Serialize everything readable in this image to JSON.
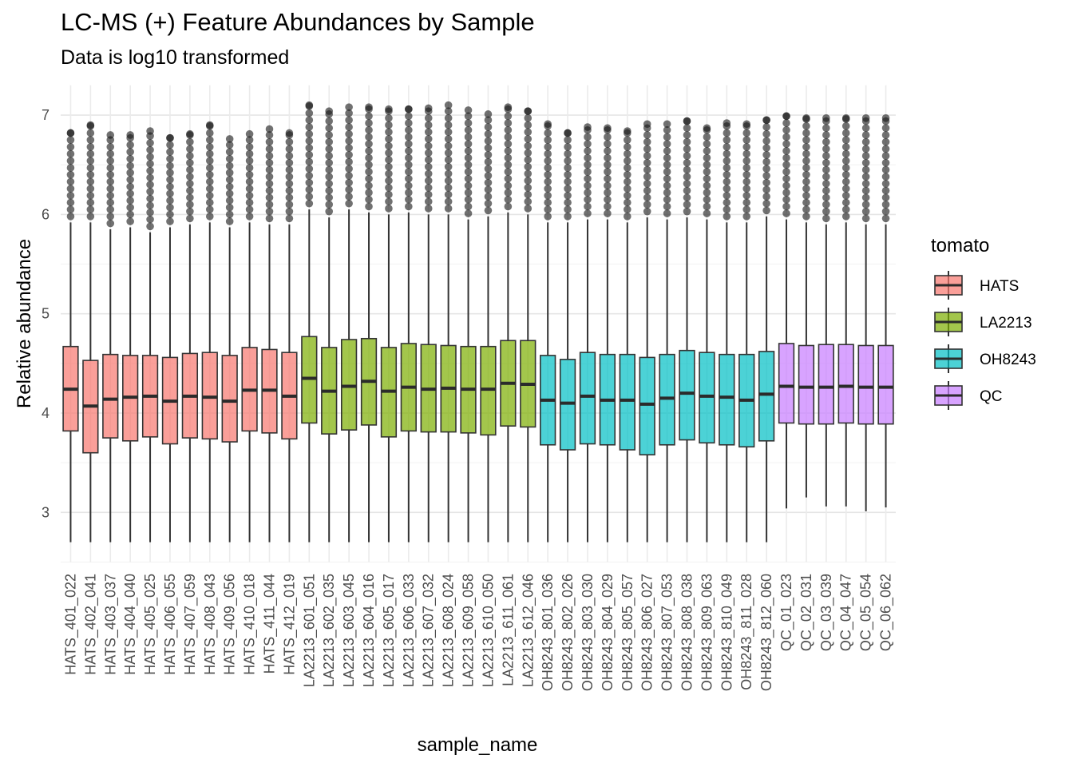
{
  "chart_data": {
    "type": "box",
    "title": "LC-MS (+) Feature Abundances by Sample",
    "subtitle": "Data is log10 transformed",
    "xlabel": "sample_name",
    "ylabel": "Relative abundance",
    "ylim": [
      2.5,
      7.3
    ],
    "yticks": [
      3,
      4,
      5,
      6,
      7
    ],
    "grid": true,
    "legend": {
      "title": "tomato",
      "position": "right",
      "entries": [
        {
          "label": "HATS",
          "color": "#F8766D"
        },
        {
          "label": "LA2213",
          "color": "#7CAE00"
        },
        {
          "label": "OH8243",
          "color": "#00BFC4"
        },
        {
          "label": "QC",
          "color": "#C77CFF"
        }
      ]
    },
    "boxes": [
      {
        "sample": "HATS_401_022",
        "group": "HATS",
        "whisker_low": 2.7,
        "q1": 3.82,
        "median": 4.24,
        "q3": 4.67,
        "whisker_high": 5.92,
        "outlier_max": 6.82
      },
      {
        "sample": "HATS_402_041",
        "group": "HATS",
        "whisker_low": 2.7,
        "q1": 3.6,
        "median": 4.07,
        "q3": 4.53,
        "whisker_high": 5.92,
        "outlier_max": 6.9
      },
      {
        "sample": "HATS_403_037",
        "group": "HATS",
        "whisker_low": 2.7,
        "q1": 3.75,
        "median": 4.14,
        "q3": 4.59,
        "whisker_high": 5.85,
        "outlier_max": 6.8
      },
      {
        "sample": "HATS_404_040",
        "group": "HATS",
        "whisker_low": 2.7,
        "q1": 3.72,
        "median": 4.16,
        "q3": 4.58,
        "whisker_high": 5.87,
        "outlier_max": 6.8
      },
      {
        "sample": "HATS_405_025",
        "group": "HATS",
        "whisker_low": 2.7,
        "q1": 3.76,
        "median": 4.17,
        "q3": 4.58,
        "whisker_high": 5.82,
        "outlier_max": 6.84
      },
      {
        "sample": "HATS_406_055",
        "group": "HATS",
        "whisker_low": 2.7,
        "q1": 3.69,
        "median": 4.12,
        "q3": 4.56,
        "whisker_high": 5.87,
        "outlier_max": 6.77
      },
      {
        "sample": "HATS_407_059",
        "group": "HATS",
        "whisker_low": 2.7,
        "q1": 3.75,
        "median": 4.17,
        "q3": 4.6,
        "whisker_high": 5.9,
        "outlier_max": 6.81
      },
      {
        "sample": "HATS_408_043",
        "group": "HATS",
        "whisker_low": 2.7,
        "q1": 3.74,
        "median": 4.16,
        "q3": 4.61,
        "whisker_high": 5.92,
        "outlier_max": 6.9
      },
      {
        "sample": "HATS_409_056",
        "group": "HATS",
        "whisker_low": 2.7,
        "q1": 3.71,
        "median": 4.12,
        "q3": 4.58,
        "whisker_high": 5.87,
        "outlier_max": 6.76
      },
      {
        "sample": "HATS_410_018",
        "group": "HATS",
        "whisker_low": 2.7,
        "q1": 3.82,
        "median": 4.23,
        "q3": 4.66,
        "whisker_high": 5.92,
        "outlier_max": 6.81
      },
      {
        "sample": "HATS_411_044",
        "group": "HATS",
        "whisker_low": 2.7,
        "q1": 3.8,
        "median": 4.23,
        "q3": 4.64,
        "whisker_high": 5.9,
        "outlier_max": 6.86
      },
      {
        "sample": "HATS_412_019",
        "group": "HATS",
        "whisker_low": 2.7,
        "q1": 3.74,
        "median": 4.17,
        "q3": 4.61,
        "whisker_high": 5.9,
        "outlier_max": 6.82
      },
      {
        "sample": "LA2213_601_051",
        "group": "LA2213",
        "whisker_low": 2.7,
        "q1": 3.9,
        "median": 4.35,
        "q3": 4.77,
        "whisker_high": 6.05,
        "outlier_max": 7.1
      },
      {
        "sample": "LA2213_602_035",
        "group": "LA2213",
        "whisker_low": 2.7,
        "q1": 3.79,
        "median": 4.22,
        "q3": 4.66,
        "whisker_high": 5.97,
        "outlier_max": 7.04
      },
      {
        "sample": "LA2213_603_045",
        "group": "LA2213",
        "whisker_low": 2.7,
        "q1": 3.83,
        "median": 4.27,
        "q3": 4.74,
        "whisker_high": 6.05,
        "outlier_max": 7.08
      },
      {
        "sample": "LA2213_604_016",
        "group": "LA2213",
        "whisker_low": 2.7,
        "q1": 3.88,
        "median": 4.32,
        "q3": 4.75,
        "whisker_high": 6.02,
        "outlier_max": 7.08
      },
      {
        "sample": "LA2213_605_017",
        "group": "LA2213",
        "whisker_low": 2.7,
        "q1": 3.76,
        "median": 4.22,
        "q3": 4.66,
        "whisker_high": 6.0,
        "outlier_max": 7.06
      },
      {
        "sample": "LA2213_606_033",
        "group": "LA2213",
        "whisker_low": 2.7,
        "q1": 3.82,
        "median": 4.26,
        "q3": 4.7,
        "whisker_high": 6.02,
        "outlier_max": 7.06
      },
      {
        "sample": "LA2213_607_032",
        "group": "LA2213",
        "whisker_low": 2.7,
        "q1": 3.81,
        "median": 4.24,
        "q3": 4.69,
        "whisker_high": 6.0,
        "outlier_max": 7.07
      },
      {
        "sample": "LA2213_608_024",
        "group": "LA2213",
        "whisker_low": 2.7,
        "q1": 3.81,
        "median": 4.25,
        "q3": 4.68,
        "whisker_high": 6.0,
        "outlier_max": 7.1
      },
      {
        "sample": "LA2213_609_058",
        "group": "LA2213",
        "whisker_low": 2.7,
        "q1": 3.8,
        "median": 4.24,
        "q3": 4.67,
        "whisker_high": 5.95,
        "outlier_max": 7.05
      },
      {
        "sample": "LA2213_610_050",
        "group": "LA2213",
        "whisker_low": 2.7,
        "q1": 3.78,
        "median": 4.24,
        "q3": 4.67,
        "whisker_high": 5.98,
        "outlier_max": 7.01
      },
      {
        "sample": "LA2213_611_061",
        "group": "LA2213",
        "whisker_low": 2.7,
        "q1": 3.87,
        "median": 4.3,
        "q3": 4.73,
        "whisker_high": 6.02,
        "outlier_max": 7.08
      },
      {
        "sample": "LA2213_612_046",
        "group": "LA2213",
        "whisker_low": 2.7,
        "q1": 3.86,
        "median": 4.29,
        "q3": 4.73,
        "whisker_high": 6.0,
        "outlier_max": 7.04
      },
      {
        "sample": "OH8243_801_036",
        "group": "OH8243",
        "whisker_low": 2.7,
        "q1": 3.68,
        "median": 4.13,
        "q3": 4.58,
        "whisker_high": 5.92,
        "outlier_max": 6.91
      },
      {
        "sample": "OH8243_802_026",
        "group": "OH8243",
        "whisker_low": 2.7,
        "q1": 3.63,
        "median": 4.1,
        "q3": 4.54,
        "whisker_high": 5.92,
        "outlier_max": 6.82
      },
      {
        "sample": "OH8243_803_030",
        "group": "OH8243",
        "whisker_low": 2.7,
        "q1": 3.69,
        "median": 4.17,
        "q3": 4.61,
        "whisker_high": 5.95,
        "outlier_max": 6.88
      },
      {
        "sample": "OH8243_804_029",
        "group": "OH8243",
        "whisker_low": 2.7,
        "q1": 3.68,
        "median": 4.13,
        "q3": 4.59,
        "whisker_high": 5.95,
        "outlier_max": 6.87
      },
      {
        "sample": "OH8243_805_057",
        "group": "OH8243",
        "whisker_low": 2.7,
        "q1": 3.63,
        "median": 4.13,
        "q3": 4.59,
        "whisker_high": 5.92,
        "outlier_max": 6.84
      },
      {
        "sample": "OH8243_806_027",
        "group": "OH8243",
        "whisker_low": 2.7,
        "q1": 3.58,
        "median": 4.09,
        "q3": 4.56,
        "whisker_high": 5.97,
        "outlier_max": 6.91
      },
      {
        "sample": "OH8243_807_053",
        "group": "OH8243",
        "whisker_low": 2.7,
        "q1": 3.68,
        "median": 4.15,
        "q3": 4.59,
        "whisker_high": 5.95,
        "outlier_max": 6.91
      },
      {
        "sample": "OH8243_808_038",
        "group": "OH8243",
        "whisker_low": 2.7,
        "q1": 3.73,
        "median": 4.2,
        "q3": 4.63,
        "whisker_high": 5.97,
        "outlier_max": 6.94
      },
      {
        "sample": "OH8243_809_063",
        "group": "OH8243",
        "whisker_low": 2.7,
        "q1": 3.7,
        "median": 4.17,
        "q3": 4.61,
        "whisker_high": 5.95,
        "outlier_max": 6.87
      },
      {
        "sample": "OH8243_810_049",
        "group": "OH8243",
        "whisker_low": 2.7,
        "q1": 3.68,
        "median": 4.16,
        "q3": 4.59,
        "whisker_high": 5.92,
        "outlier_max": 6.92
      },
      {
        "sample": "OH8243_811_028",
        "group": "OH8243",
        "whisker_low": 2.7,
        "q1": 3.66,
        "median": 4.13,
        "q3": 4.59,
        "whisker_high": 5.92,
        "outlier_max": 6.91
      },
      {
        "sample": "OH8243_812_060",
        "group": "OH8243",
        "whisker_low": 2.7,
        "q1": 3.72,
        "median": 4.19,
        "q3": 4.62,
        "whisker_high": 5.98,
        "outlier_max": 6.95
      },
      {
        "sample": "QC_01_023",
        "group": "QC",
        "whisker_low": 3.04,
        "q1": 3.9,
        "median": 4.27,
        "q3": 4.7,
        "whisker_high": 5.95,
        "outlier_max": 6.99
      },
      {
        "sample": "QC_02_031",
        "group": "QC",
        "whisker_low": 3.15,
        "q1": 3.89,
        "median": 4.26,
        "q3": 4.68,
        "whisker_high": 5.92,
        "outlier_max": 6.97
      },
      {
        "sample": "QC_03_039",
        "group": "QC",
        "whisker_low": 3.06,
        "q1": 3.89,
        "median": 4.26,
        "q3": 4.69,
        "whisker_high": 5.9,
        "outlier_max": 6.97
      },
      {
        "sample": "QC_04_047",
        "group": "QC",
        "whisker_low": 3.06,
        "q1": 3.9,
        "median": 4.27,
        "q3": 4.69,
        "whisker_high": 5.92,
        "outlier_max": 6.97
      },
      {
        "sample": "QC_05_054",
        "group": "QC",
        "whisker_low": 3.01,
        "q1": 3.89,
        "median": 4.26,
        "q3": 4.68,
        "whisker_high": 5.9,
        "outlier_max": 6.97
      },
      {
        "sample": "QC_06_062",
        "group": "QC",
        "whisker_low": 3.05,
        "q1": 3.89,
        "median": 4.26,
        "q3": 4.68,
        "whisker_high": 5.9,
        "outlier_max": 6.97
      }
    ]
  }
}
